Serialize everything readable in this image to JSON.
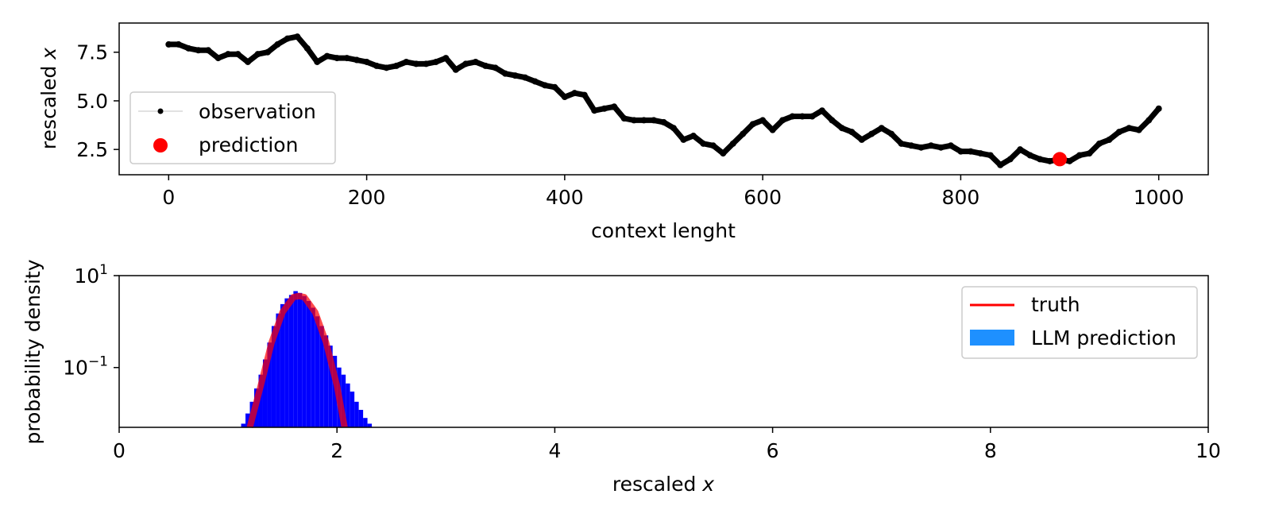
{
  "chart_data": [
    {
      "type": "line",
      "xlabel": "context lenght",
      "ylabel_text": "rescaled ",
      "ylabel_var": "x",
      "xlim": [
        -50,
        1050
      ],
      "ylim": [
        1.2,
        9.0
      ],
      "xticks": [
        {
          "v": 0,
          "label": "0"
        },
        {
          "v": 200,
          "label": "200"
        },
        {
          "v": 400,
          "label": "400"
        },
        {
          "v": 600,
          "label": "600"
        },
        {
          "v": 800,
          "label": "800"
        },
        {
          "v": 1000,
          "label": "1000"
        }
      ],
      "yticks": [
        {
          "v": 2.5,
          "label": "2.5"
        },
        {
          "v": 5.0,
          "label": "5.0"
        },
        {
          "v": 7.5,
          "label": "7.5"
        }
      ],
      "legend_position": "lower-left",
      "series": [
        {
          "name": "observation",
          "color": "#000000",
          "marker": "dot",
          "x": [
            0,
            10,
            20,
            30,
            40,
            50,
            60,
            70,
            80,
            90,
            100,
            110,
            120,
            130,
            140,
            150,
            160,
            170,
            180,
            190,
            200,
            210,
            220,
            230,
            240,
            250,
            260,
            270,
            280,
            290,
            300,
            310,
            320,
            330,
            340,
            350,
            360,
            370,
            380,
            390,
            400,
            410,
            420,
            430,
            440,
            450,
            460,
            470,
            480,
            490,
            500,
            510,
            520,
            530,
            540,
            550,
            560,
            570,
            580,
            590,
            600,
            610,
            620,
            630,
            640,
            650,
            660,
            670,
            680,
            690,
            700,
            710,
            720,
            730,
            740,
            750,
            760,
            770,
            780,
            790,
            800,
            810,
            820,
            830,
            840,
            850,
            860,
            870,
            880,
            890,
            900,
            910,
            920,
            930,
            940,
            950,
            960,
            970,
            980,
            990,
            1000
          ],
          "y": [
            7.9,
            7.9,
            7.7,
            7.6,
            7.6,
            7.2,
            7.4,
            7.4,
            7.0,
            7.4,
            7.5,
            7.9,
            8.2,
            8.3,
            7.7,
            7.0,
            7.3,
            7.2,
            7.2,
            7.1,
            7.0,
            6.8,
            6.7,
            6.8,
            7.0,
            6.9,
            6.9,
            7.0,
            7.2,
            6.6,
            6.9,
            7.0,
            6.8,
            6.7,
            6.4,
            6.3,
            6.2,
            6.0,
            5.8,
            5.7,
            5.2,
            5.4,
            5.3,
            4.5,
            4.6,
            4.7,
            4.1,
            4.0,
            4.0,
            4.0,
            3.9,
            3.6,
            3.0,
            3.2,
            2.8,
            2.7,
            2.3,
            2.8,
            3.3,
            3.8,
            4.0,
            3.5,
            4.0,
            4.2,
            4.2,
            4.2,
            4.5,
            4.0,
            3.6,
            3.4,
            3.0,
            3.3,
            3.6,
            3.3,
            2.8,
            2.7,
            2.6,
            2.7,
            2.6,
            2.7,
            2.4,
            2.4,
            2.3,
            2.2,
            1.7,
            2.0,
            2.5,
            2.2,
            2.0,
            1.9,
            2.0,
            1.9,
            2.2,
            2.3,
            2.8,
            3.0,
            3.4,
            3.6,
            3.5,
            4.0,
            4.6
          ]
        },
        {
          "name": "prediction",
          "color": "#ff0000",
          "marker": "circle",
          "x": [
            900
          ],
          "y": [
            2.0
          ]
        }
      ]
    },
    {
      "type": "area",
      "xlabel_text": "rescaled ",
      "xlabel_var": "x",
      "ylabel": "probability density",
      "yscale": "log",
      "xlim": [
        0,
        10
      ],
      "ylim": [
        0.005,
        10
      ],
      "xticks": [
        {
          "v": 0,
          "label": "0"
        },
        {
          "v": 2,
          "label": "2"
        },
        {
          "v": 4,
          "label": "4"
        },
        {
          "v": 6,
          "label": "6"
        },
        {
          "v": 8,
          "label": "8"
        },
        {
          "v": 10,
          "label": "10"
        }
      ],
      "yticks": [
        {
          "v": 10,
          "base": "10",
          "exp": "1"
        },
        {
          "v": 0.1,
          "base": "10",
          "exp": "−1"
        }
      ],
      "legend_position": "top-right",
      "series": [
        {
          "name": "truth",
          "color": "#ff0000",
          "kind": "line",
          "x": [
            1.2,
            1.3,
            1.4,
            1.5,
            1.6,
            1.65,
            1.7,
            1.8,
            1.9,
            2.0,
            2.07
          ],
          "y": [
            0.005,
            0.04,
            0.35,
            1.6,
            3.4,
            3.6,
            3.4,
            1.6,
            0.35,
            0.04,
            0.005
          ]
        },
        {
          "name": "LLM prediction",
          "color": "#0000ff",
          "legend_color": "#1e90ff",
          "kind": "histogram",
          "x": [
            1.14,
            1.18,
            1.22,
            1.26,
            1.3,
            1.34,
            1.38,
            1.42,
            1.46,
            1.5,
            1.54,
            1.58,
            1.62,
            1.66,
            1.7,
            1.74,
            1.78,
            1.82,
            1.86,
            1.9,
            1.94,
            1.98,
            2.02,
            2.06,
            2.1,
            2.14,
            2.18,
            2.22,
            2.26,
            2.3
          ],
          "y": [
            0.006,
            0.01,
            0.018,
            0.035,
            0.07,
            0.15,
            0.35,
            0.8,
            1.5,
            2.4,
            3.2,
            3.8,
            4.6,
            4.2,
            3.6,
            2.8,
            2.0,
            1.3,
            0.8,
            0.5,
            0.3,
            0.18,
            0.1,
            0.07,
            0.045,
            0.03,
            0.018,
            0.012,
            0.008,
            0.006
          ]
        }
      ]
    }
  ]
}
